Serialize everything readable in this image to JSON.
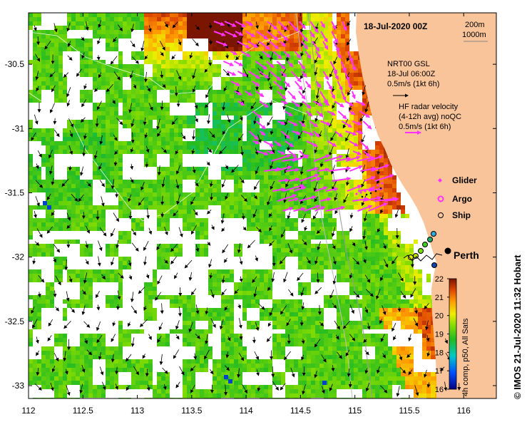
{
  "title": "18-Jul-2020 00Z",
  "depth_legend": [
    "200m",
    "1000m"
  ],
  "city_label": "Perth",
  "gsl_legend": {
    "line1": "NRT00 GSL",
    "line2": "18-Jul 06:00Z",
    "line3": "0.5m/s (1kt 6h)"
  },
  "hf_legend": {
    "line1": "HF radar velocity",
    "line2": "(4-12h avg) noQC",
    "line3": "0.5m/s (1kt 6h)"
  },
  "symbol_legend": {
    "glider": "Glider",
    "argo": "Argo",
    "ship": "Ship"
  },
  "colorbar": {
    "label": "4h comp, p50, All Sats",
    "min": 16,
    "max": 22,
    "ticks": [
      "16",
      "17",
      "18",
      "19",
      "20",
      "21",
      "22"
    ]
  },
  "credit": "© IMOS 21-Jul-2020 11:32 Hobart",
  "axes": {
    "x_ticks": [
      "112",
      "112.5",
      "113",
      "113.5",
      "114",
      "114.5",
      "115",
      "115.5",
      "116"
    ],
    "y_ticks": [
      "-30.5",
      "-31",
      "-31.5",
      "-32",
      "-32.5",
      "-33"
    ],
    "xlim": [
      112,
      116.3
    ],
    "ylim": [
      -33.1,
      -30.1
    ]
  },
  "colors": {
    "land": "#f9c49a",
    "hf_arrow": "#ff33ff",
    "gsl_arrow": "#000000",
    "missing": "#ffffff"
  }
}
